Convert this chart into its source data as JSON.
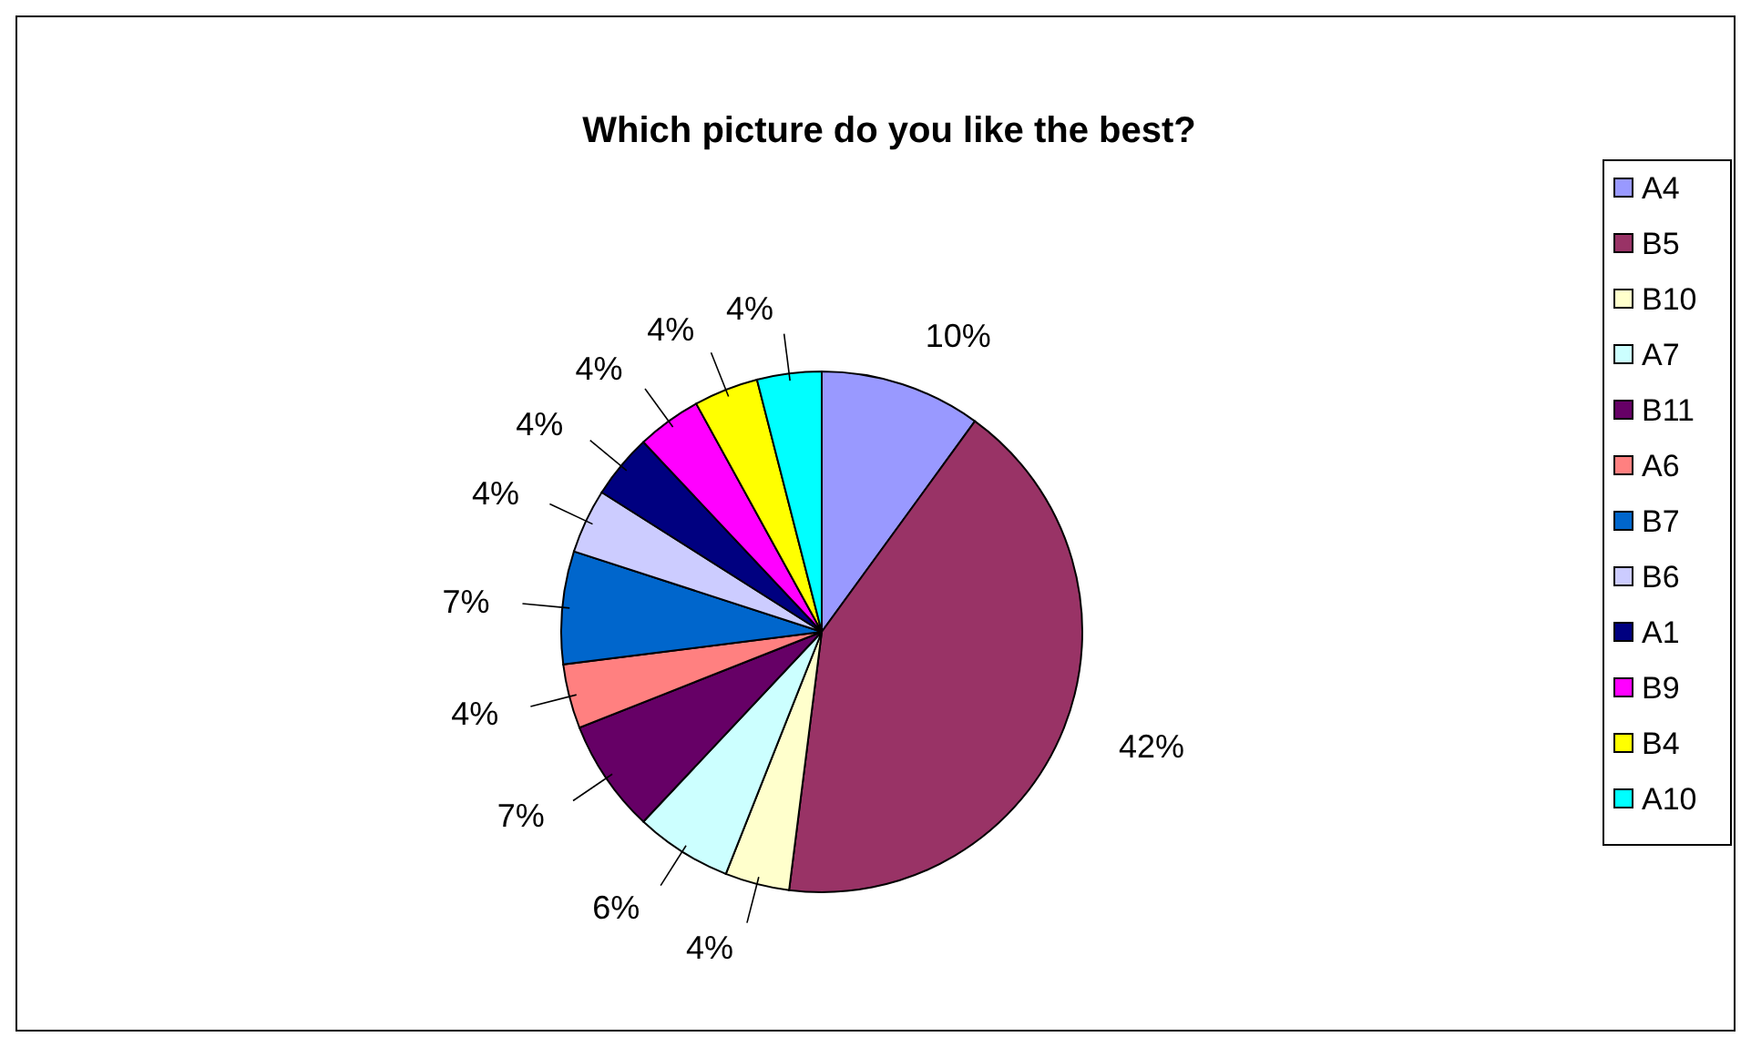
{
  "chart_data": {
    "type": "pie",
    "title": "Which picture do you like the best?",
    "categories": [
      "A4",
      "B5",
      "B10",
      "A7",
      "B11",
      "A6",
      "B7",
      "B6",
      "A1",
      "B9",
      "B4",
      "A10"
    ],
    "values": [
      10,
      42,
      4,
      6,
      7,
      4,
      7,
      4,
      4,
      4,
      4,
      4
    ],
    "colors": [
      "#9999ff",
      "#993366",
      "#ffffcc",
      "#ccffff",
      "#660066",
      "#ff8080",
      "#0066cc",
      "#ccccff",
      "#000080",
      "#ff00ff",
      "#ffff00",
      "#00ffff"
    ],
    "value_labels": [
      "10%",
      "42%",
      "4%",
      "6%",
      "7%",
      "4%",
      "7%",
      "4%",
      "4%",
      "4%",
      "4%",
      "4%"
    ],
    "legend": "right"
  }
}
